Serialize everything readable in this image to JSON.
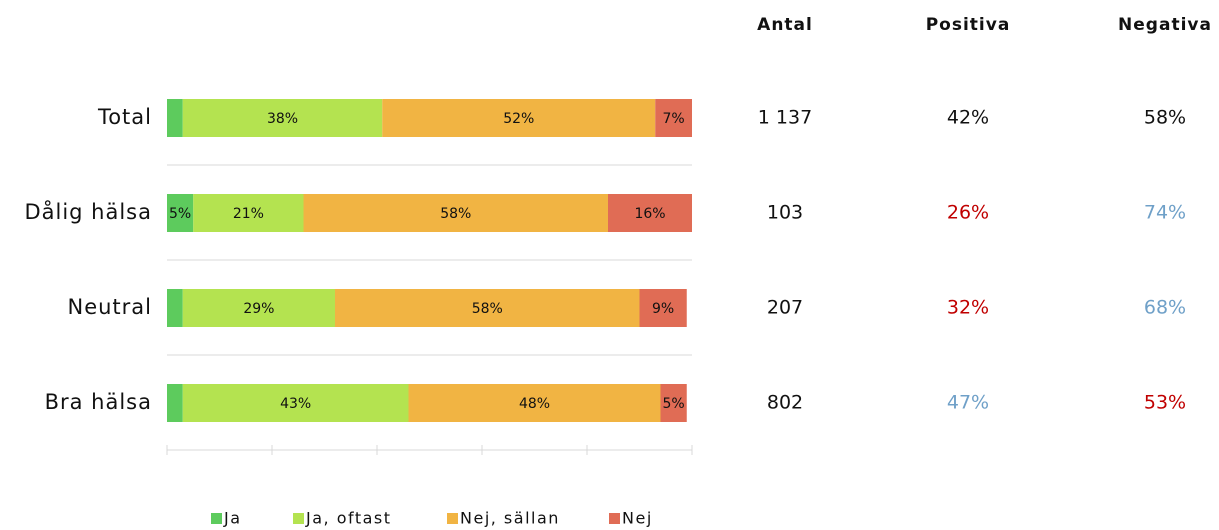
{
  "chart_data": {
    "type": "stacked-barh",
    "categories": [
      "Total",
      "Dålig hälsa",
      "Neutral",
      "Bra hälsa"
    ],
    "series": [
      {
        "name": "Ja",
        "color": "#5dcb5d",
        "values": [
          3,
          5,
          3,
          3
        ],
        "value_labels": [
          null,
          "5%",
          null,
          null
        ]
      },
      {
        "name": "Ja, oftast",
        "color": "#b4e350",
        "values": [
          38,
          21,
          29,
          43
        ],
        "value_labels": [
          "38%",
          "21%",
          "29%",
          "43%"
        ]
      },
      {
        "name": "Nej, sällan",
        "color": "#f1b443",
        "values": [
          52,
          58,
          58,
          48
        ],
        "value_labels": [
          "52%",
          "58%",
          "58%",
          "48%"
        ]
      },
      {
        "name": "Nej",
        "color": "#e06c55",
        "values": [
          7,
          16,
          9,
          5
        ],
        "value_labels": [
          "7%",
          "16%",
          "9%",
          "5%"
        ]
      }
    ],
    "xlim": [
      0,
      100
    ],
    "xticks": [
      0,
      20,
      40,
      60,
      80,
      100
    ],
    "legend": "bottom"
  },
  "table": {
    "columns": [
      "Antal",
      "Positiva",
      "Negativa"
    ],
    "rows": [
      [
        {
          "value": 1137,
          "label": "1 137",
          "color": "#111111"
        },
        {
          "value": 42,
          "label": "42%",
          "color": "#111111"
        },
        {
          "value": 58,
          "label": "58%",
          "color": "#111111"
        }
      ],
      [
        {
          "value": 103,
          "label": "103",
          "color": "#111111"
        },
        {
          "value": 26,
          "label": "26%",
          "color": "#c00000"
        },
        {
          "value": 74,
          "label": "74%",
          "color": "#6fa0c8"
        }
      ],
      [
        {
          "value": 207,
          "label": "207",
          "color": "#111111"
        },
        {
          "value": 32,
          "label": "32%",
          "color": "#c00000"
        },
        {
          "value": 68,
          "label": "68%",
          "color": "#6fa0c8"
        }
      ],
      [
        {
          "value": 802,
          "label": "802",
          "color": "#111111"
        },
        {
          "value": 47,
          "label": "47%",
          "color": "#6fa0c8"
        },
        {
          "value": 53,
          "label": "53%",
          "color": "#c00000"
        }
      ]
    ]
  }
}
